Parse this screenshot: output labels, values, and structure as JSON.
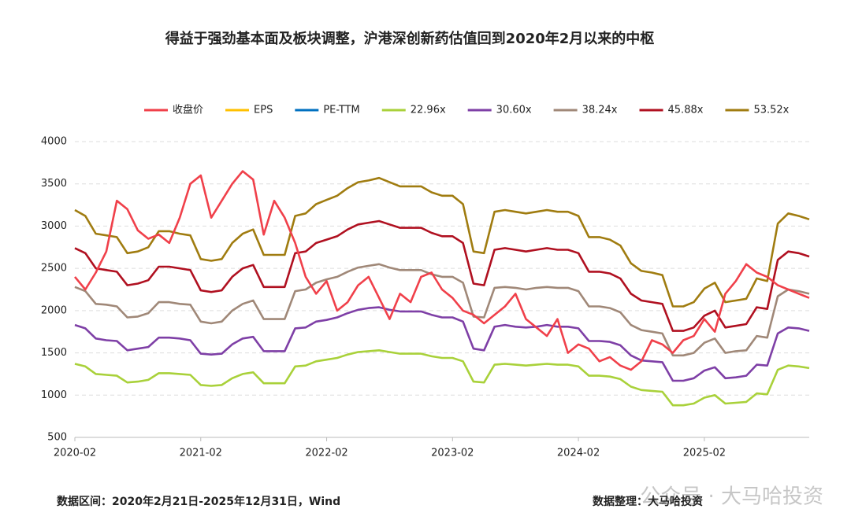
{
  "chart_data": {
    "type": "line",
    "title": "得益于强劲基本面及板块调整，沪港深创新药估值回到2020年2月以来的中枢",
    "x": [
      "2020-02",
      "2020-03",
      "2020-04",
      "2020-05",
      "2020-06",
      "2020-07",
      "2020-08",
      "2020-09",
      "2020-10",
      "2020-11",
      "2020-12",
      "2021-01",
      "2021-02",
      "2021-03",
      "2021-04",
      "2021-05",
      "2021-06",
      "2021-07",
      "2021-08",
      "2021-09",
      "2021-10",
      "2021-11",
      "2021-12",
      "2022-01",
      "2022-02",
      "2022-03",
      "2022-04",
      "2022-05",
      "2022-06",
      "2022-07",
      "2022-08",
      "2022-09",
      "2022-10",
      "2022-11",
      "2022-12",
      "2023-01",
      "2023-02",
      "2023-03",
      "2023-04",
      "2023-05",
      "2023-06",
      "2023-07",
      "2023-08",
      "2023-09",
      "2023-10",
      "2023-11",
      "2023-12",
      "2024-01",
      "2024-02",
      "2024-03",
      "2024-04",
      "2024-05",
      "2024-06",
      "2024-07",
      "2024-08",
      "2024-09",
      "2024-10",
      "2024-11",
      "2024-12",
      "2025-01",
      "2025-02",
      "2025-03",
      "2025-04",
      "2025-05",
      "2025-06",
      "2025-07",
      "2025-08",
      "2025-09",
      "2025-10",
      "2025-11",
      "2025-12"
    ],
    "xticks": [
      "2020-02",
      "2021-02",
      "2022-02",
      "2023-02",
      "2024-02",
      "2025-02"
    ],
    "ylim": [
      500,
      4000
    ],
    "yticks": [
      500,
      1000,
      1500,
      2000,
      2500,
      3000,
      3500,
      4000
    ],
    "grid": true,
    "series": [
      {
        "name": "收盘价",
        "color": "#f0404a",
        "values": [
          2400,
          2250,
          2450,
          2700,
          3300,
          3200,
          2950,
          2850,
          2900,
          2800,
          3100,
          3500,
          3600,
          3100,
          3300,
          3500,
          3650,
          3550,
          2900,
          3300,
          3100,
          2800,
          2400,
          2200,
          2350,
          2000,
          2100,
          2300,
          2400,
          2150,
          1900,
          2200,
          2100,
          2400,
          2450,
          2250,
          2150,
          2000,
          1950,
          1850,
          1950,
          2050,
          2200,
          1900,
          1800,
          1700,
          1900,
          1500,
          1600,
          1550,
          1400,
          1450,
          1350,
          1300,
          1400,
          1650,
          1600,
          1500,
          1650,
          1700,
          1900,
          1750,
          2200,
          2350,
          2550,
          2450,
          2400,
          2300,
          2250,
          2200,
          2150
        ]
      },
      {
        "name": "EPS",
        "color": "#ffc000",
        "values": [
          null,
          null,
          null,
          null,
          null,
          null,
          null,
          null,
          null,
          null,
          null,
          null,
          null,
          null,
          null,
          null,
          null,
          null,
          null,
          null,
          null,
          null,
          null,
          null,
          null,
          null,
          null,
          null,
          null,
          null,
          null,
          null,
          null,
          null,
          null,
          null,
          null,
          null,
          null,
          null,
          null,
          null,
          null,
          null,
          null,
          null,
          null,
          null,
          null,
          null,
          null,
          null,
          null,
          null,
          null,
          null,
          null,
          null,
          null,
          null,
          null,
          null,
          null,
          null,
          null,
          null,
          null,
          null,
          null,
          null,
          null
        ]
      },
      {
        "name": "PE-TTM",
        "color": "#0070c0",
        "values": [
          null,
          null,
          null,
          null,
          null,
          null,
          null,
          null,
          null,
          null,
          null,
          null,
          null,
          null,
          null,
          null,
          null,
          null,
          null,
          null,
          null,
          null,
          null,
          null,
          null,
          null,
          null,
          null,
          null,
          null,
          null,
          null,
          null,
          null,
          null,
          null,
          null,
          null,
          null,
          null,
          null,
          null,
          null,
          null,
          null,
          null,
          null,
          null,
          null,
          null,
          null,
          null,
          null,
          null,
          null,
          null,
          null,
          null,
          null,
          null,
          null,
          null,
          null,
          null,
          null,
          null,
          null,
          null,
          null,
          null,
          null
        ]
      },
      {
        "name": "22.96x",
        "color": "#a9d13a",
        "values": [
          1370,
          1340,
          1250,
          1240,
          1230,
          1150,
          1160,
          1180,
          1260,
          1260,
          1250,
          1240,
          1120,
          1110,
          1120,
          1200,
          1250,
          1270,
          1140,
          1140,
          1140,
          1340,
          1350,
          1400,
          1420,
          1440,
          1480,
          1510,
          1520,
          1530,
          1510,
          1490,
          1490,
          1490,
          1460,
          1440,
          1440,
          1400,
          1160,
          1150,
          1360,
          1370,
          1360,
          1350,
          1360,
          1370,
          1360,
          1360,
          1340,
          1230,
          1230,
          1220,
          1190,
          1100,
          1060,
          1050,
          1040,
          880,
          880,
          900,
          970,
          1000,
          900,
          910,
          920,
          1020,
          1010,
          1300,
          1350,
          1340,
          1320
        ]
      },
      {
        "name": "30.60x",
        "color": "#7e3fa6",
        "values": [
          1830,
          1790,
          1670,
          1650,
          1640,
          1530,
          1550,
          1570,
          1680,
          1680,
          1670,
          1650,
          1490,
          1480,
          1490,
          1600,
          1670,
          1690,
          1520,
          1520,
          1520,
          1790,
          1800,
          1870,
          1890,
          1920,
          1970,
          2010,
          2030,
          2040,
          2010,
          1990,
          1990,
          1990,
          1950,
          1920,
          1920,
          1870,
          1550,
          1530,
          1810,
          1830,
          1810,
          1800,
          1810,
          1830,
          1810,
          1810,
          1790,
          1640,
          1640,
          1630,
          1590,
          1470,
          1410,
          1400,
          1390,
          1170,
          1170,
          1200,
          1290,
          1330,
          1200,
          1210,
          1230,
          1360,
          1350,
          1730,
          1800,
          1790,
          1760
        ]
      },
      {
        "name": "38.24x",
        "color": "#a08878",
        "values": [
          2280,
          2230,
          2080,
          2070,
          2050,
          1920,
          1930,
          1970,
          2100,
          2100,
          2080,
          2070,
          1870,
          1850,
          1870,
          2000,
          2080,
          2120,
          1900,
          1900,
          1900,
          2230,
          2250,
          2330,
          2370,
          2400,
          2460,
          2510,
          2530,
          2550,
          2510,
          2480,
          2480,
          2480,
          2430,
          2400,
          2400,
          2330,
          1930,
          1920,
          2270,
          2280,
          2270,
          2250,
          2270,
          2280,
          2270,
          2270,
          2230,
          2050,
          2050,
          2030,
          1980,
          1830,
          1770,
          1750,
          1730,
          1470,
          1470,
          1500,
          1620,
          1670,
          1500,
          1520,
          1530,
          1700,
          1680,
          2170,
          2250,
          2230,
          2200
        ]
      },
      {
        "name": "45.88x",
        "color": "#b01020",
        "values": [
          2740,
          2680,
          2500,
          2480,
          2460,
          2300,
          2320,
          2360,
          2520,
          2520,
          2500,
          2480,
          2240,
          2220,
          2240,
          2400,
          2500,
          2540,
          2280,
          2280,
          2280,
          2680,
          2700,
          2800,
          2840,
          2880,
          2960,
          3020,
          3040,
          3060,
          3020,
          2980,
          2980,
          2980,
          2920,
          2880,
          2880,
          2800,
          2320,
          2300,
          2720,
          2740,
          2720,
          2700,
          2720,
          2740,
          2720,
          2720,
          2680,
          2460,
          2460,
          2440,
          2380,
          2200,
          2120,
          2100,
          2080,
          1760,
          1760,
          1800,
          1940,
          2000,
          1800,
          1820,
          1840,
          2040,
          2020,
          2600,
          2700,
          2680,
          2640
        ]
      },
      {
        "name": "53.52x",
        "color": "#a07c10",
        "values": [
          3190,
          3120,
          2910,
          2890,
          2870,
          2680,
          2700,
          2750,
          2940,
          2940,
          2910,
          2890,
          2610,
          2590,
          2610,
          2800,
          2910,
          2960,
          2660,
          2660,
          2660,
          3120,
          3150,
          3260,
          3310,
          3360,
          3450,
          3520,
          3540,
          3570,
          3520,
          3470,
          3470,
          3470,
          3400,
          3360,
          3360,
          3260,
          2700,
          2680,
          3170,
          3190,
          3170,
          3150,
          3170,
          3190,
          3170,
          3170,
          3120,
          2870,
          2870,
          2840,
          2770,
          2560,
          2470,
          2450,
          2420,
          2050,
          2050,
          2100,
          2260,
          2330,
          2100,
          2120,
          2140,
          2380,
          2350,
          3030,
          3150,
          3120,
          3080
        ]
      }
    ],
    "source": "数据区间：2020年2月21日-2025年12月31日，Wind",
    "credit": "数据整理：大马哈投资",
    "watermark": "公众号 · 大马哈投资"
  }
}
